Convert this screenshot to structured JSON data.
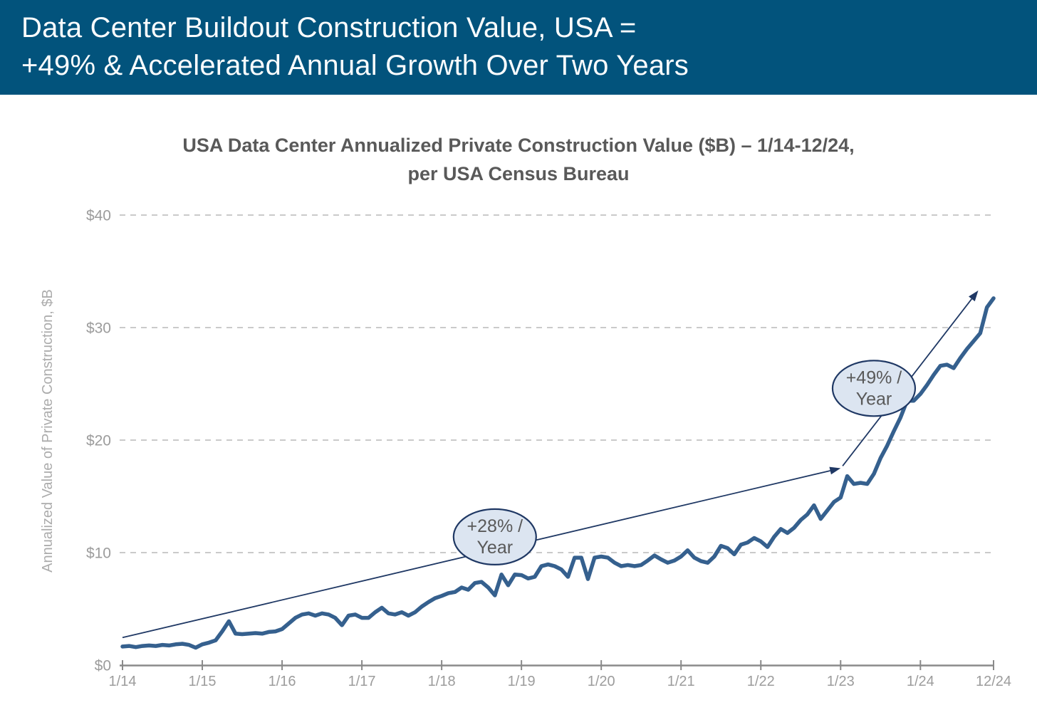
{
  "header": {
    "line1": "Data Center Buildout Construction Value, USA =",
    "line2": "+49% & Accelerated Annual Growth Over Two Years"
  },
  "chart_data": {
    "type": "line",
    "title_line1": "USA Data Center Annualized Private Construction Value ($B) – 1/14-12/24,",
    "title_line2": "per USA Census Bureau",
    "ylabel": "Annualized Value of Private Construction, $B",
    "ylim": [
      0,
      40
    ],
    "y_tick_values": [
      0,
      10,
      20,
      30,
      40
    ],
    "y_tick_labels": [
      "$0",
      "$10",
      "$20",
      "$30",
      "$40"
    ],
    "x_tick_labels": [
      "1/14",
      "1/15",
      "1/16",
      "1/17",
      "1/18",
      "1/19",
      "1/20",
      "1/21",
      "1/22",
      "1/23",
      "1/24",
      "12/24"
    ],
    "grid": "horizontal-dashed",
    "legend": "none",
    "series": [
      {
        "name": "USA data center annualized private construction value ($B)",
        "x_start": "1/14",
        "x_end": "12/24",
        "frequency": "monthly",
        "values": [
          1.65,
          1.7,
          1.6,
          1.7,
          1.75,
          1.7,
          1.8,
          1.75,
          1.85,
          1.9,
          1.8,
          1.55,
          1.85,
          2.0,
          2.2,
          3.0,
          3.9,
          2.8,
          2.75,
          2.8,
          2.85,
          2.8,
          2.95,
          3.0,
          3.2,
          3.7,
          4.2,
          4.5,
          4.6,
          4.4,
          4.6,
          4.5,
          4.2,
          3.55,
          4.4,
          4.5,
          4.2,
          4.2,
          4.7,
          5.1,
          4.6,
          4.5,
          4.7,
          4.4,
          4.7,
          5.2,
          5.6,
          5.95,
          6.15,
          6.4,
          6.5,
          6.9,
          6.7,
          7.3,
          7.4,
          6.9,
          6.2,
          8.05,
          7.1,
          8.05,
          8.0,
          7.7,
          7.85,
          8.8,
          8.95,
          8.8,
          8.5,
          7.85,
          9.55,
          9.55,
          7.65,
          9.55,
          9.65,
          9.55,
          9.1,
          8.8,
          8.9,
          8.8,
          8.9,
          9.3,
          9.75,
          9.4,
          9.1,
          9.3,
          9.65,
          10.2,
          9.55,
          9.25,
          9.1,
          9.65,
          10.6,
          10.4,
          9.85,
          10.7,
          10.9,
          11.3,
          11.0,
          10.5,
          11.4,
          12.1,
          11.75,
          12.2,
          12.9,
          13.4,
          14.2,
          13.0,
          13.75,
          14.5,
          14.9,
          16.8,
          16.1,
          16.2,
          16.1,
          17.0,
          18.4,
          19.5,
          20.8,
          22.0,
          23.5,
          23.5,
          24.1,
          24.9,
          25.8,
          26.6,
          26.7,
          26.4,
          27.3,
          28.1,
          28.8,
          29.5,
          31.8,
          32.6
        ]
      }
    ],
    "annotations": [
      {
        "label_line1": "+28% /",
        "label_line2": "Year",
        "ellipse_center": {
          "month_index": 56,
          "value": 11.4
        },
        "arrow": {
          "from": {
            "month_index": 0,
            "value": 2.45
          },
          "to": {
            "month_index": 108,
            "value": 17.5
          }
        }
      },
      {
        "label_line1": "+49% /",
        "label_line2": "Year",
        "ellipse_center": {
          "month_index": 113,
          "value": 24.6
        },
        "arrow": {
          "from": {
            "month_index": 108.3,
            "value": 17.7
          },
          "to": {
            "month_index": 128.7,
            "value": 33.3
          }
        }
      }
    ],
    "colors": {
      "banner_bg": "#02537C",
      "banner_text": "#FBFDFE",
      "title_text": "#595959",
      "line": "#35608E",
      "trend_arrow": "#1F3864",
      "ellipse_fill": "#DCE5F1",
      "ellipse_stroke": "#1F3864",
      "ellipse_text": "#595959",
      "gridline": "#C3C3C3",
      "axis_line": "#8A8A8A",
      "tick_text": "#9C9C9C",
      "ylabel_text": "#ACACAC"
    }
  }
}
